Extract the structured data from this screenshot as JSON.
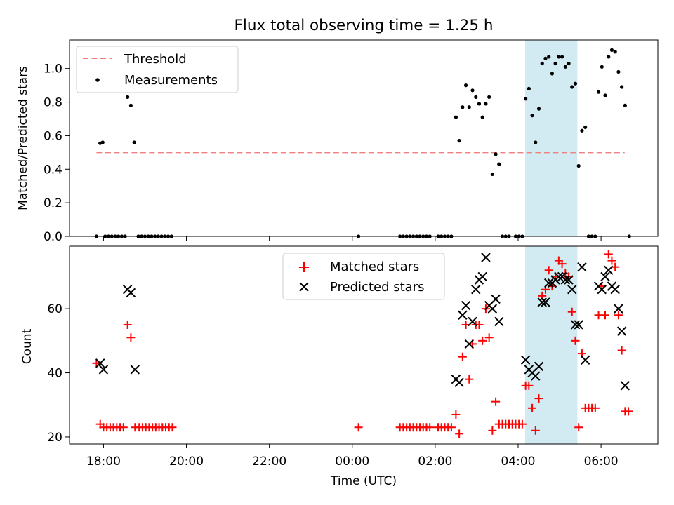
{
  "figure": {
    "title": "Flux total observing time = 1.25 h",
    "xlabel": "Time (UTC)",
    "xticks": [
      {
        "t": 0,
        "label": "18:00"
      },
      {
        "t": 2,
        "label": "20:00"
      },
      {
        "t": 4,
        "label": "22:00"
      },
      {
        "t": 6,
        "label": "00:00"
      },
      {
        "t": 8,
        "label": "02:00"
      },
      {
        "t": 10,
        "label": "04:00"
      },
      {
        "t": 12,
        "label": "06:00"
      }
    ],
    "xlim": [
      -0.82,
      13.37
    ],
    "shaded_span": {
      "x0": 10.17,
      "x1": 11.43,
      "color": "#add8e6"
    }
  },
  "chart_data": [
    {
      "type": "scatter",
      "ylabel": "Matched/Predicted stars",
      "ylim": [
        0,
        1.17
      ],
      "yticks": [
        "0.0",
        "0.2",
        "0.4",
        "0.6",
        "0.8",
        "1.0"
      ],
      "legend_position": "top-left",
      "threshold": {
        "name": "Threshold",
        "y": 0.5,
        "x0": -0.17,
        "x1": 12.57,
        "color": "#f08080"
      },
      "series": [
        {
          "name": "Measurements",
          "color": "#000000",
          "points": [
            [
              -0.17,
              0
            ],
            [
              -0.08,
              0.555
            ],
            [
              -0.02,
              0.56
            ],
            [
              0.04,
              0
            ],
            [
              0.12,
              0
            ],
            [
              0.2,
              0
            ],
            [
              0.28,
              0
            ],
            [
              0.36,
              0
            ],
            [
              0.44,
              0
            ],
            [
              0.52,
              0
            ],
            [
              0.58,
              0.83
            ],
            [
              0.66,
              0.78
            ],
            [
              0.74,
              0.56
            ],
            [
              0.84,
              0
            ],
            [
              0.92,
              0
            ],
            [
              1.0,
              0
            ],
            [
              1.08,
              0
            ],
            [
              1.16,
              0
            ],
            [
              1.24,
              0
            ],
            [
              1.32,
              0
            ],
            [
              1.4,
              0
            ],
            [
              1.48,
              0
            ],
            [
              1.56,
              0
            ],
            [
              1.64,
              0
            ],
            [
              6.15,
              0
            ],
            [
              7.15,
              0
            ],
            [
              7.23,
              0
            ],
            [
              7.31,
              0
            ],
            [
              7.39,
              0
            ],
            [
              7.47,
              0
            ],
            [
              7.55,
              0
            ],
            [
              7.63,
              0
            ],
            [
              7.71,
              0
            ],
            [
              7.79,
              0
            ],
            [
              7.87,
              0
            ],
            [
              8.07,
              0
            ],
            [
              8.15,
              0
            ],
            [
              8.23,
              0
            ],
            [
              8.31,
              0
            ],
            [
              8.39,
              0
            ],
            [
              8.5,
              0.71
            ],
            [
              8.58,
              0.57
            ],
            [
              8.66,
              0.77
            ],
            [
              8.74,
              0.9
            ],
            [
              8.82,
              0.77
            ],
            [
              8.9,
              0.87
            ],
            [
              8.98,
              0.83
            ],
            [
              9.06,
              0.79
            ],
            [
              9.14,
              0.71
            ],
            [
              9.22,
              0.79
            ],
            [
              9.3,
              0.83
            ],
            [
              9.38,
              0.37
            ],
            [
              9.46,
              0.49
            ],
            [
              9.54,
              0.43
            ],
            [
              9.62,
              0
            ],
            [
              9.7,
              0
            ],
            [
              9.78,
              0
            ],
            [
              9.94,
              0
            ],
            [
              10.02,
              0
            ],
            [
              10.1,
              0
            ],
            [
              10.18,
              0.82
            ],
            [
              10.26,
              0.88
            ],
            [
              10.34,
              0.72
            ],
            [
              10.42,
              0.56
            ],
            [
              10.5,
              0.76
            ],
            [
              10.58,
              1.03
            ],
            [
              10.66,
              1.06
            ],
            [
              10.74,
              1.07
            ],
            [
              10.82,
              0.97
            ],
            [
              10.9,
              1.03
            ],
            [
              10.98,
              1.07
            ],
            [
              11.06,
              1.07
            ],
            [
              11.14,
              1.01
            ],
            [
              11.22,
              1.03
            ],
            [
              11.3,
              0.89
            ],
            [
              11.38,
              0.91
            ],
            [
              11.46,
              0.42
            ],
            [
              11.54,
              0.63
            ],
            [
              11.62,
              0.65
            ],
            [
              11.7,
              0
            ],
            [
              11.78,
              0
            ],
            [
              11.86,
              0
            ],
            [
              11.94,
              0.86
            ],
            [
              12.02,
              1.01
            ],
            [
              12.1,
              0.84
            ],
            [
              12.18,
              1.07
            ],
            [
              12.26,
              1.11
            ],
            [
              12.34,
              1.1
            ],
            [
              12.42,
              0.98
            ],
            [
              12.5,
              0.89
            ],
            [
              12.58,
              0.78
            ],
            [
              12.68,
              0
            ]
          ]
        }
      ]
    },
    {
      "type": "scatter",
      "ylabel": "Count",
      "ylim": [
        17.8,
        79.5
      ],
      "yticks": [
        "20",
        "40",
        "60"
      ],
      "legend_position": "upper-center",
      "series": [
        {
          "name": "Matched stars",
          "color": "#ff0000",
          "marker": "plus",
          "points": [
            [
              -0.17,
              43
            ],
            [
              -0.08,
              24
            ],
            [
              0.0,
              23
            ],
            [
              0.08,
              23
            ],
            [
              0.16,
              23
            ],
            [
              0.24,
              23
            ],
            [
              0.32,
              23
            ],
            [
              0.4,
              23
            ],
            [
              0.48,
              23
            ],
            [
              0.58,
              55
            ],
            [
              0.66,
              51
            ],
            [
              0.76,
              23
            ],
            [
              0.86,
              23
            ],
            [
              0.94,
              23
            ],
            [
              1.02,
              23
            ],
            [
              1.1,
              23
            ],
            [
              1.18,
              23
            ],
            [
              1.26,
              23
            ],
            [
              1.34,
              23
            ],
            [
              1.42,
              23
            ],
            [
              1.5,
              23
            ],
            [
              1.58,
              23
            ],
            [
              1.66,
              23
            ],
            [
              6.15,
              23
            ],
            [
              7.15,
              23
            ],
            [
              7.23,
              23
            ],
            [
              7.31,
              23
            ],
            [
              7.39,
              23
            ],
            [
              7.47,
              23
            ],
            [
              7.55,
              23
            ],
            [
              7.63,
              23
            ],
            [
              7.71,
              23
            ],
            [
              7.79,
              23
            ],
            [
              7.87,
              23
            ],
            [
              8.07,
              23
            ],
            [
              8.15,
              23
            ],
            [
              8.23,
              23
            ],
            [
              8.31,
              23
            ],
            [
              8.39,
              23
            ],
            [
              8.5,
              27
            ],
            [
              8.58,
              21
            ],
            [
              8.66,
              45
            ],
            [
              8.74,
              55
            ],
            [
              8.82,
              38
            ],
            [
              8.9,
              49
            ],
            [
              8.98,
              55
            ],
            [
              9.06,
              55
            ],
            [
              9.14,
              50
            ],
            [
              9.22,
              60
            ],
            [
              9.3,
              51
            ],
            [
              9.38,
              22
            ],
            [
              9.46,
              31
            ],
            [
              9.54,
              24
            ],
            [
              9.62,
              24
            ],
            [
              9.7,
              24
            ],
            [
              9.78,
              24
            ],
            [
              9.86,
              24
            ],
            [
              9.94,
              24
            ],
            [
              10.02,
              24
            ],
            [
              10.1,
              24
            ],
            [
              10.18,
              36
            ],
            [
              10.26,
              36
            ],
            [
              10.34,
              29
            ],
            [
              10.42,
              22
            ],
            [
              10.5,
              32
            ],
            [
              10.58,
              64
            ],
            [
              10.66,
              66
            ],
            [
              10.74,
              72
            ],
            [
              10.82,
              67
            ],
            [
              10.9,
              70
            ],
            [
              10.98,
              75
            ],
            [
              11.06,
              74
            ],
            [
              11.14,
              71
            ],
            [
              11.22,
              70
            ],
            [
              11.3,
              59
            ],
            [
              11.38,
              50
            ],
            [
              11.46,
              23
            ],
            [
              11.54,
              46
            ],
            [
              11.62,
              29
            ],
            [
              11.7,
              29
            ],
            [
              11.78,
              29
            ],
            [
              11.86,
              29
            ],
            [
              11.94,
              58
            ],
            [
              12.02,
              67
            ],
            [
              12.1,
              58
            ],
            [
              12.18,
              77
            ],
            [
              12.26,
              75
            ],
            [
              12.34,
              73
            ],
            [
              12.42,
              58
            ],
            [
              12.5,
              47
            ],
            [
              12.58,
              28
            ],
            [
              12.66,
              28
            ]
          ]
        },
        {
          "name": "Predicted stars",
          "color": "#000000",
          "marker": "x",
          "points": [
            [
              -0.08,
              43
            ],
            [
              0.0,
              41
            ],
            [
              0.58,
              66
            ],
            [
              0.66,
              65
            ],
            [
              0.76,
              41
            ],
            [
              8.5,
              38
            ],
            [
              8.58,
              37
            ],
            [
              8.66,
              58
            ],
            [
              8.74,
              61
            ],
            [
              8.82,
              49
            ],
            [
              8.9,
              56
            ],
            [
              8.98,
              66
            ],
            [
              9.06,
              69
            ],
            [
              9.14,
              70
            ],
            [
              9.22,
              76
            ],
            [
              9.3,
              61
            ],
            [
              9.38,
              60
            ],
            [
              9.46,
              63
            ],
            [
              9.54,
              56
            ],
            [
              10.18,
              44
            ],
            [
              10.26,
              41
            ],
            [
              10.34,
              40
            ],
            [
              10.42,
              39
            ],
            [
              10.5,
              42
            ],
            [
              10.58,
              62
            ],
            [
              10.66,
              62
            ],
            [
              10.74,
              68
            ],
            [
              10.82,
              68
            ],
            [
              10.9,
              69
            ],
            [
              10.98,
              70
            ],
            [
              11.06,
              70
            ],
            [
              11.14,
              69
            ],
            [
              11.22,
              69
            ],
            [
              11.3,
              66
            ],
            [
              11.38,
              55
            ],
            [
              11.46,
              55
            ],
            [
              11.54,
              73
            ],
            [
              11.62,
              44
            ],
            [
              11.94,
              67
            ],
            [
              12.02,
              66
            ],
            [
              12.1,
              70
            ],
            [
              12.18,
              72
            ],
            [
              12.26,
              67
            ],
            [
              12.34,
              66
            ],
            [
              12.42,
              60
            ],
            [
              12.5,
              53
            ],
            [
              12.58,
              36
            ]
          ]
        }
      ]
    }
  ]
}
